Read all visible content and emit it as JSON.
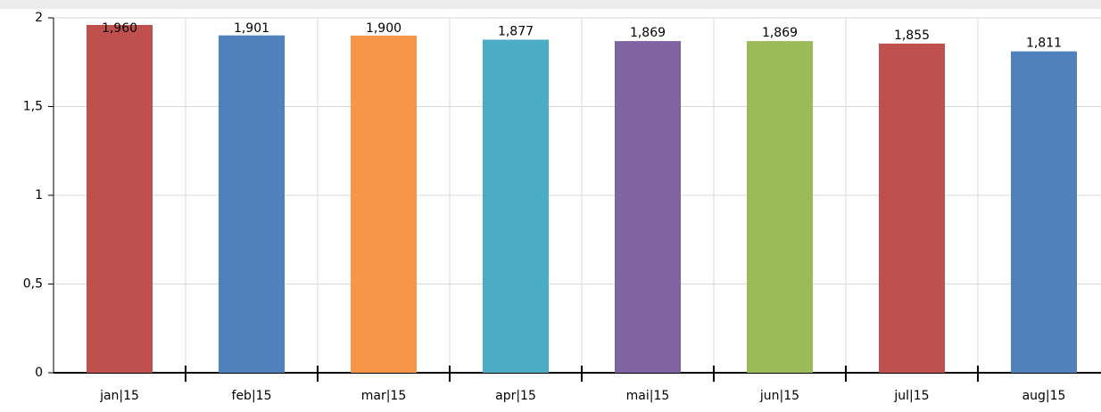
{
  "chart_data": {
    "type": "bar",
    "categories": [
      "jan|15",
      "feb|15",
      "mar|15",
      "apr|15",
      "mai|15",
      "jun|15",
      "jul|15",
      "aug|15"
    ],
    "values": [
      1.96,
      1.901,
      1.9,
      1.877,
      1.869,
      1.869,
      1.855,
      1.811
    ],
    "value_labels": [
      "1,960",
      "1,901",
      "1,900",
      "1,877",
      "1,869",
      "1,869",
      "1,855",
      "1,811"
    ],
    "colors": [
      "#c0504d",
      "#4f81bd",
      "#f79646",
      "#4bacc6",
      "#8064a2",
      "#9bbb59",
      "#c0504d",
      "#4f81bd"
    ],
    "ylim": [
      0,
      2
    ],
    "yticks": [
      0,
      {
        "value": 0.5,
        "label": "0,5"
      },
      1,
      {
        "value": 1.5,
        "label": "1,5"
      },
      2
    ],
    "grid": true
  }
}
